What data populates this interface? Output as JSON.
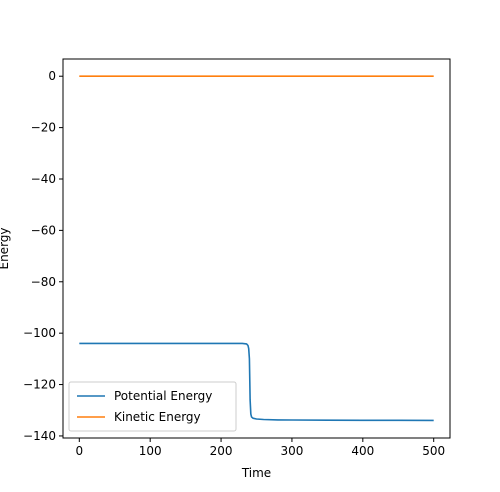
{
  "chart_data": {
    "type": "line",
    "title": "",
    "xlabel": "Time",
    "ylabel": "Energy",
    "xlim": [
      -23,
      523
    ],
    "ylim": [
      -140.8,
      6.7
    ],
    "xticks": [
      0,
      100,
      200,
      300,
      400,
      500
    ],
    "yticks": [
      0,
      -20,
      -40,
      -60,
      -80,
      -100,
      -120,
      -140
    ],
    "grid": false,
    "legend_position": "lower-left",
    "series": [
      {
        "name": "Potential Energy",
        "color": "#1f77b4",
        "x": [
          0,
          50,
          100,
          150,
          200,
          230,
          236,
          238,
          239,
          240,
          240.5,
          241,
          242,
          243,
          245,
          250,
          260,
          280,
          300,
          350,
          400,
          450,
          500
        ],
        "y": [
          -104,
          -104,
          -104,
          -104,
          -104,
          -104,
          -104.2,
          -104.8,
          -106,
          -110,
          -118,
          -126,
          -131.5,
          -132.6,
          -133.1,
          -133.4,
          -133.6,
          -133.75,
          -133.8,
          -133.85,
          -133.9,
          -133.9,
          -133.95
        ]
      },
      {
        "name": "Kinetic Energy",
        "color": "#ff7f0e",
        "x": [
          0,
          100,
          200,
          300,
          400,
          500
        ],
        "y": [
          0,
          0,
          0,
          0,
          0,
          0
        ]
      }
    ]
  }
}
